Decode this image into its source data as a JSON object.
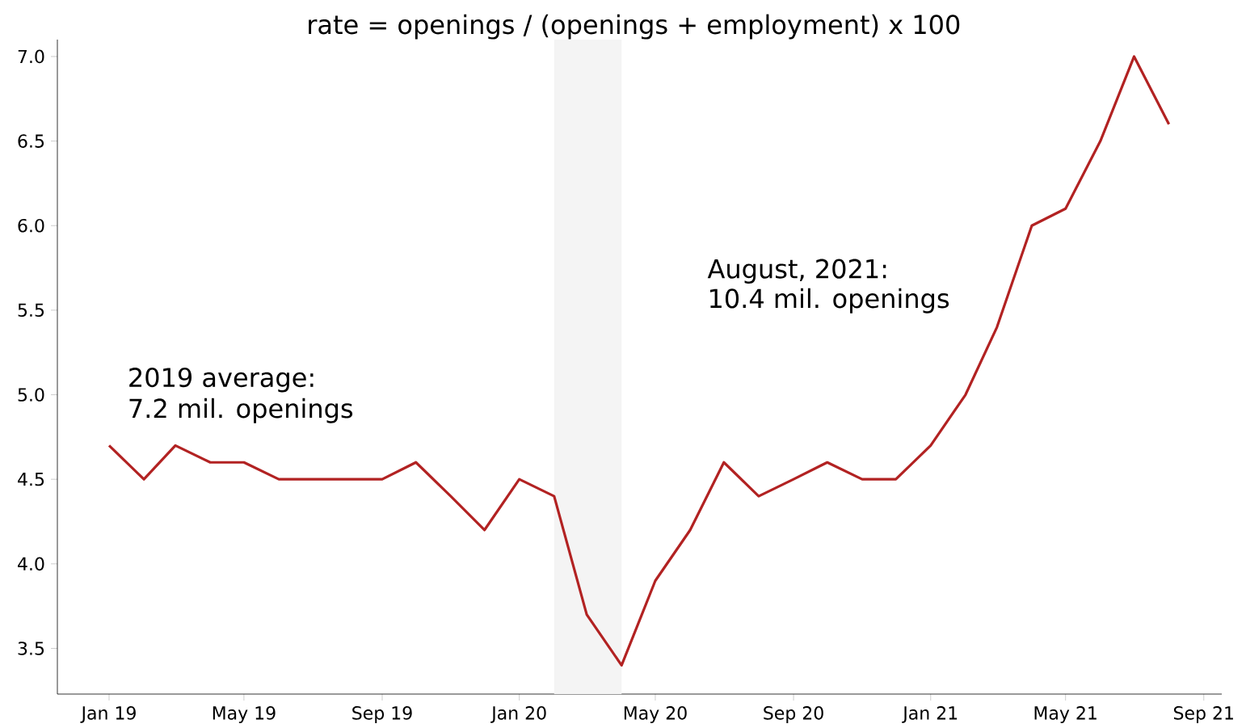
{
  "chart_data": {
    "type": "line",
    "subtitle": "rate = openings / (openings + employment) x 100",
    "x": [
      "2019-01",
      "2019-02",
      "2019-03",
      "2019-04",
      "2019-05",
      "2019-06",
      "2019-07",
      "2019-08",
      "2019-09",
      "2019-10",
      "2019-11",
      "2019-12",
      "2020-01",
      "2020-02",
      "2020-03",
      "2020-04",
      "2020-05",
      "2020-06",
      "2020-07",
      "2020-08",
      "2020-09",
      "2020-10",
      "2020-11",
      "2020-12",
      "2021-01",
      "2021-02",
      "2021-03",
      "2021-04",
      "2021-05",
      "2021-06",
      "2021-07",
      "2021-08"
    ],
    "series": [
      {
        "color": "#b22222",
        "values": [
          4.7,
          4.5,
          4.7,
          4.6,
          4.6,
          4.5,
          4.5,
          4.5,
          4.5,
          4.6,
          4.4,
          4.2,
          4.5,
          4.4,
          3.7,
          3.4,
          3.9,
          4.2,
          4.6,
          4.4,
          4.5,
          4.6,
          4.5,
          4.5,
          4.7,
          5.0,
          5.4,
          6.0,
          6.1,
          6.5,
          7.0,
          6.6
        ]
      }
    ],
    "xlim": [
      "2018-11-16",
      "2021-09-17"
    ],
    "ylim": [
      3.23,
      7.1
    ],
    "xticks": [
      {
        "value": "2019-01",
        "label": "Jan 19"
      },
      {
        "value": "2019-05",
        "label": "May 19"
      },
      {
        "value": "2019-09",
        "label": "Sep 19"
      },
      {
        "value": "2020-01",
        "label": "Jan 20"
      },
      {
        "value": "2020-05",
        "label": "May 20"
      },
      {
        "value": "2020-09",
        "label": "Sep 20"
      },
      {
        "value": "2021-01",
        "label": "Jan 21"
      },
      {
        "value": "2021-05",
        "label": "May 21"
      },
      {
        "value": "2021-09",
        "label": "Sep 21"
      }
    ],
    "yticks": [
      {
        "value": 3.5,
        "label": "3.5"
      },
      {
        "value": 4.0,
        "label": "4.0"
      },
      {
        "value": 4.5,
        "label": "4.5"
      },
      {
        "value": 5.0,
        "label": "5.0"
      },
      {
        "value": 5.5,
        "label": "5.5"
      },
      {
        "value": 6.0,
        "label": "6.0"
      },
      {
        "value": 6.5,
        "label": "6.5"
      },
      {
        "value": 7.0,
        "label": "7.0"
      }
    ],
    "bands": [
      {
        "axis": "x",
        "from": "2020-02",
        "to": "2020-04",
        "color": "#f4f4f4"
      }
    ],
    "annotations": [
      "2019 average:",
      "7.2 mil. openings",
      "August, 2021:",
      "10.4 mil. openings"
    ]
  }
}
